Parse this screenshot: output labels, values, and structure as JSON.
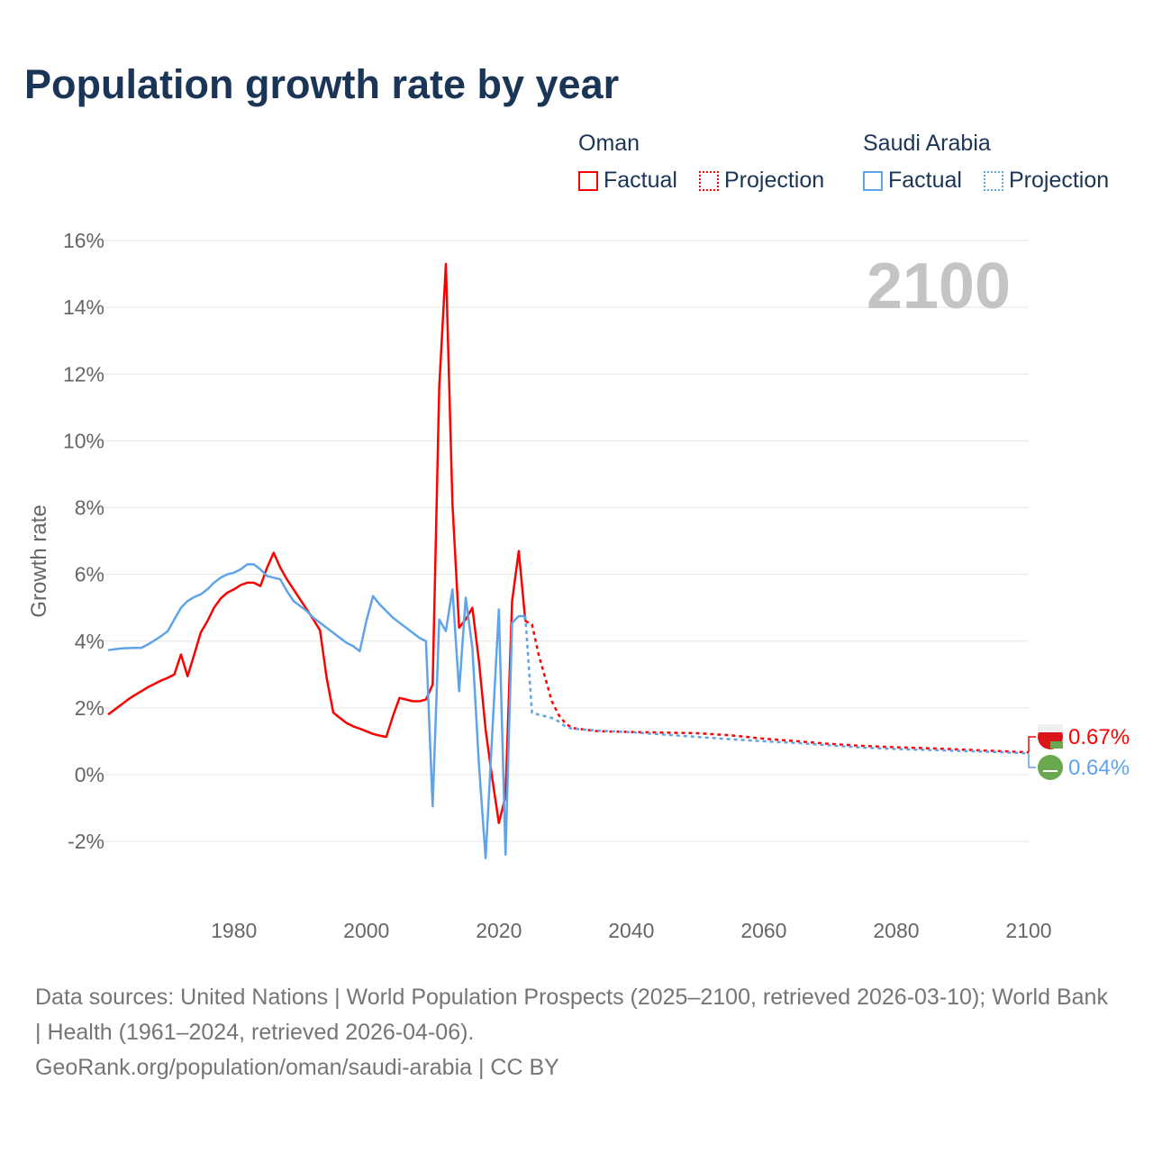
{
  "title": "Population growth rate by year",
  "legend": {
    "groups": [
      {
        "name": "Oman",
        "color": "#ff0000",
        "factual": "Factual",
        "projection": "Projection"
      },
      {
        "name": "Saudi Arabia",
        "color": "#5fa4e8",
        "factual": "Factual",
        "projection": "Projection"
      }
    ]
  },
  "year_watermark": "2100",
  "footer": {
    "sources": "Data sources: United Nations | World Population Prospects (2025–2100, retrieved 2026-03-10); World Bank | Health (1961–2024, retrieved 2026-04-06).",
    "credit": "GeoRank.org/population/oman/saudi-arabia | CC BY"
  },
  "chart_data": {
    "type": "line",
    "title": "Population growth rate by year",
    "xlabel": "",
    "ylabel": "Growth rate",
    "xlim": [
      1961,
      2100
    ],
    "ylim": [
      -2,
      16
    ],
    "yticks": [
      -2,
      0,
      2,
      4,
      6,
      8,
      10,
      12,
      14,
      16
    ],
    "ytick_labels": [
      "-2%",
      "0%",
      "2%",
      "4%",
      "6%",
      "8%",
      "10%",
      "12%",
      "14%",
      "16%"
    ],
    "xticks": [
      1980,
      2000,
      2020,
      2040,
      2060,
      2080,
      2100
    ],
    "xtick_labels": [
      "1980",
      "2000",
      "2020",
      "2040",
      "2060",
      "2080",
      "2100"
    ],
    "grid": true,
    "legend_position": "top-right",
    "series": [
      {
        "name": "Oman",
        "kind": "Factual",
        "color": "#ff0000",
        "dashed": false,
        "x_start": 1961,
        "values": [
          1.8,
          1.95,
          2.1,
          2.25,
          2.38,
          2.5,
          2.62,
          2.72,
          2.82,
          2.9,
          3.0,
          3.6,
          2.95,
          3.6,
          4.26,
          4.6,
          5.0,
          5.28,
          5.45,
          5.55,
          5.68,
          5.75,
          5.75,
          5.65,
          6.2,
          6.65,
          6.2,
          5.85,
          5.55,
          5.25,
          4.95,
          4.65,
          4.32,
          2.9,
          1.86,
          1.7,
          1.55,
          1.45,
          1.38,
          1.3,
          1.22,
          1.17,
          1.13,
          1.75,
          2.3,
          2.25,
          2.2,
          2.2,
          2.25,
          2.7,
          11.6,
          15.3,
          8.1,
          4.4,
          4.65,
          5.0,
          3.4,
          1.35,
          -0.1,
          -1.45,
          -0.65,
          5.2,
          6.7,
          4.6
        ]
      },
      {
        "name": "Oman",
        "kind": "Projection",
        "color": "#ff0000",
        "dashed": true,
        "x": [
          2024,
          2025,
          2026,
          2027,
          2028,
          2029,
          2030,
          2031,
          2035,
          2040,
          2045,
          2050,
          2055,
          2060,
          2065,
          2070,
          2075,
          2080,
          2085,
          2090,
          2095,
          2100
        ],
        "values": [
          4.6,
          4.5,
          3.6,
          2.9,
          2.2,
          1.8,
          1.55,
          1.4,
          1.3,
          1.28,
          1.26,
          1.24,
          1.18,
          1.08,
          1.0,
          0.92,
          0.86,
          0.82,
          0.79,
          0.75,
          0.71,
          0.67
        ]
      },
      {
        "name": "Saudi Arabia",
        "kind": "Factual",
        "color": "#5fa4e8",
        "dashed": false,
        "x_start": 1961,
        "values": [
          3.73,
          3.76,
          3.78,
          3.79,
          3.8,
          3.8,
          3.9,
          4.02,
          4.15,
          4.3,
          4.65,
          5.0,
          5.2,
          5.32,
          5.4,
          5.55,
          5.75,
          5.9,
          6.0,
          6.05,
          6.15,
          6.3,
          6.3,
          6.15,
          5.95,
          5.9,
          5.85,
          5.5,
          5.2,
          5.05,
          4.9,
          4.7,
          4.55,
          4.4,
          4.25,
          4.1,
          3.95,
          3.85,
          3.7,
          4.6,
          5.35,
          5.1,
          4.9,
          4.7,
          4.55,
          4.4,
          4.25,
          4.1,
          4.0,
          -0.95,
          4.65,
          4.3,
          5.55,
          2.5,
          5.3,
          3.8,
          0.3,
          -2.5,
          1.2,
          4.95,
          -2.4,
          4.55,
          4.75,
          4.75
        ]
      },
      {
        "name": "Saudi Arabia",
        "kind": "Projection",
        "color": "#5fa4e8",
        "dashed": true,
        "x": [
          2024,
          2025,
          2026,
          2027,
          2028,
          2029,
          2030,
          2031,
          2035,
          2040,
          2045,
          2050,
          2055,
          2060,
          2065,
          2070,
          2075,
          2080,
          2085,
          2090,
          2095,
          2100
        ],
        "values": [
          4.75,
          1.85,
          1.8,
          1.75,
          1.7,
          1.6,
          1.45,
          1.38,
          1.32,
          1.27,
          1.2,
          1.13,
          1.06,
          1.0,
          0.95,
          0.88,
          0.81,
          0.77,
          0.74,
          0.71,
          0.68,
          0.64
        ]
      }
    ],
    "end_labels": [
      {
        "name": "Oman",
        "text": "0.67%",
        "color": "#ff0000"
      },
      {
        "name": "Saudi Arabia",
        "text": "0.64%",
        "color": "#5fa4e8"
      }
    ]
  }
}
